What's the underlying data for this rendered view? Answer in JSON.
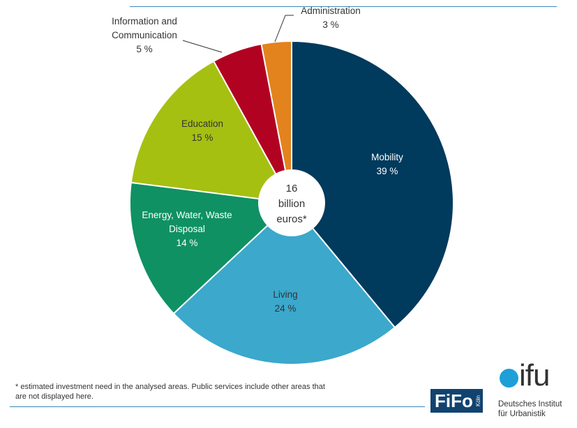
{
  "chart_data": {
    "type": "pie",
    "donut_hole": true,
    "center_label": [
      "16",
      "billion",
      "euros*"
    ],
    "slices": [
      {
        "label": [
          "Mobility"
        ],
        "value": 39,
        "value_label": "39 %",
        "color": "#003a5d"
      },
      {
        "label": [
          "Living"
        ],
        "value": 24,
        "value_label": "24 %",
        "color": "#3ba8cc"
      },
      {
        "label": [
          "Energy, Water, Waste",
          "Disposal"
        ],
        "value": 14,
        "value_label": "14 %",
        "color": "#0f9164"
      },
      {
        "label": [
          "Education"
        ],
        "value": 15,
        "value_label": "15 %",
        "color": "#a6c011"
      },
      {
        "label": [
          "Information and",
          "Communication"
        ],
        "value": 5,
        "value_label": "5 %",
        "color": "#b20222"
      },
      {
        "label": [
          "Administration"
        ],
        "value": 3,
        "value_label": "3 %",
        "color": "#e3831e"
      }
    ]
  },
  "footnote": "* estimated investment need in the analysed areas. Public services include other areas that are not displayed here.",
  "logos": {
    "fifo": {
      "text": "FiFo",
      "subtext": "Köln"
    },
    "difu": {
      "word": "ifu",
      "line1": "Deutsches Institut",
      "line2": "für Urbanistik"
    }
  }
}
